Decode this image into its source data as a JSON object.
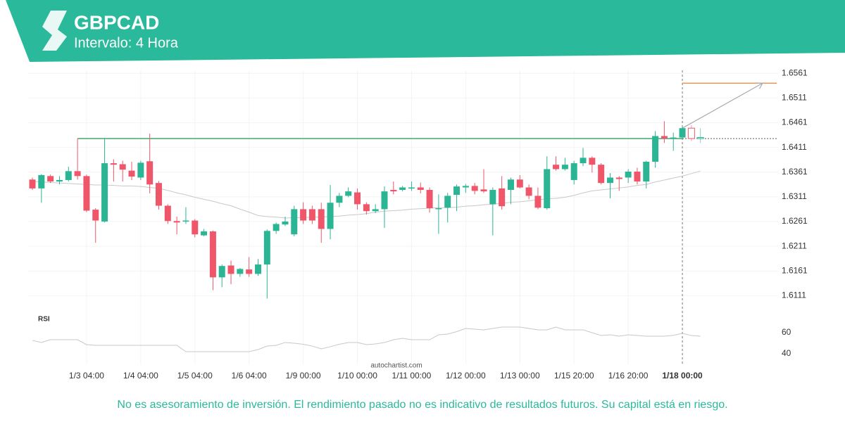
{
  "chart_data": {
    "type": "candlestick",
    "title": "GBPCAD",
    "subtitle": "Intervalo: 4 Hora",
    "watermark": "autochartist.com",
    "rsi_label": "RSI",
    "disclaimer": "No es asesoramiento de inversión. El rendimiento pasado no es indicativo de resultados futuros. Su capital está en riesgo.",
    "categories": [
      null,
      null,
      null,
      null,
      null,
      null,
      "1/3 04:00",
      null,
      null,
      null,
      null,
      null,
      "1/4 04:00",
      null,
      null,
      null,
      null,
      null,
      "1/5 04:00",
      null,
      null,
      null,
      null,
      null,
      "1/6 04:00",
      null,
      null,
      null,
      null,
      null,
      "1/9 00:00",
      null,
      null,
      null,
      null,
      null,
      "1/10 00:00",
      null,
      null,
      null,
      null,
      null,
      "1/11 00:00",
      null,
      null,
      null,
      null,
      null,
      "1/12 00:00",
      null,
      null,
      null,
      null,
      null,
      "1/13 00:00",
      null,
      null,
      null,
      null,
      null,
      "1/15 20:00",
      null,
      null,
      null,
      null,
      null,
      "1/16 20:00",
      null,
      null,
      null,
      null,
      null,
      "1/18 00:00",
      null,
      null
    ],
    "open": [
      1.6346,
      1.6328,
      1.6353,
      1.6342,
      1.6345,
      1.6363,
      1.6353,
      1.6285,
      1.6261,
      1.6379,
      1.6377,
      1.6364,
      1.635,
      1.6383,
      1.6339,
      1.6293,
      1.6262,
      1.6261,
      1.6263,
      1.6233,
      1.6241,
      1.6148,
      1.6172,
      1.6155,
      1.6164,
      1.6155,
      1.6174,
      1.6242,
      1.6255,
      1.6235,
      1.6286,
      1.6286,
      1.6286,
      1.6246,
      1.6299,
      1.6313,
      1.632,
      1.6296,
      1.6282,
      1.6286,
      1.6325,
      1.6325,
      1.6329,
      1.633,
      1.6325,
      1.6286,
      1.6289,
      1.6315,
      1.633,
      1.6333,
      1.6326,
      1.6296,
      1.6328,
      1.6325,
      1.6346,
      1.633,
      1.6313,
      1.6288,
      1.6376,
      1.6367,
      1.6345,
      1.6379,
      1.639,
      1.6376,
      1.6339,
      1.635,
      1.635,
      1.6362,
      1.6342,
      1.6382,
      1.6434,
      1.6429,
      1.6431,
      1.645,
      1.6429
    ],
    "high": [
      1.635,
      1.6357,
      1.6356,
      1.6353,
      1.6372,
      1.6429,
      1.6356,
      1.6288,
      1.6429,
      1.6387,
      1.6384,
      1.6382,
      1.6384,
      1.6439,
      1.6343,
      1.6296,
      1.6271,
      1.629,
      1.6266,
      1.6246,
      1.6243,
      1.6174,
      1.6182,
      1.6167,
      1.6189,
      1.6185,
      1.6245,
      1.6259,
      1.6271,
      1.6293,
      1.63,
      1.6293,
      1.6299,
      1.6335,
      1.6319,
      1.633,
      1.6328,
      1.63,
      1.6296,
      1.6332,
      1.6342,
      1.6333,
      1.6342,
      1.634,
      1.633,
      1.6316,
      1.6319,
      1.6336,
      1.6337,
      1.6339,
      1.6367,
      1.633,
      1.6353,
      1.635,
      1.6355,
      1.6336,
      1.633,
      1.6393,
      1.6393,
      1.639,
      1.6384,
      1.641,
      1.6393,
      1.6379,
      1.6359,
      1.6353,
      1.6367,
      1.637,
      1.6384,
      1.6444,
      1.6464,
      1.6441,
      1.6453,
      1.6456,
      1.645
    ],
    "low": [
      1.6325,
      1.6299,
      1.6339,
      1.6336,
      1.6342,
      1.6346,
      1.628,
      1.6218,
      1.6259,
      1.6342,
      1.6342,
      1.6345,
      1.6345,
      1.6318,
      1.6285,
      1.6256,
      1.6235,
      1.6256,
      1.6229,
      1.6231,
      1.6122,
      1.6128,
      1.6134,
      1.6149,
      1.6149,
      1.6151,
      1.6105,
      1.6236,
      1.6252,
      1.6231,
      1.6256,
      1.6256,
      1.6218,
      1.6225,
      1.629,
      1.631,
      1.6285,
      1.6275,
      1.6278,
      1.6248,
      1.6316,
      1.6322,
      1.6323,
      1.6318,
      1.6279,
      1.6236,
      1.6259,
      1.6282,
      1.6319,
      1.6316,
      1.6319,
      1.6233,
      1.6285,
      1.6296,
      1.6328,
      1.6306,
      1.6286,
      1.6285,
      1.6364,
      1.6364,
      1.6336,
      1.6373,
      1.636,
      1.6336,
      1.6308,
      1.6323,
      1.6339,
      1.6336,
      1.6328,
      1.637,
      1.642,
      1.6404,
      1.6429,
      1.6424,
      1.642
    ],
    "close": [
      1.6328,
      1.6355,
      1.6342,
      1.6345,
      1.6363,
      1.6353,
      1.6283,
      1.6263,
      1.6379,
      1.6376,
      1.6366,
      1.6352,
      1.638,
      1.6336,
      1.6293,
      1.6262,
      1.6259,
      1.6263,
      1.6235,
      1.6241,
      1.6148,
      1.6171,
      1.6155,
      1.6165,
      1.6155,
      1.6174,
      1.6242,
      1.6256,
      1.6261,
      1.6286,
      1.6263,
      1.6263,
      1.6246,
      1.6299,
      1.6313,
      1.6322,
      1.6296,
      1.6282,
      1.6286,
      1.6322,
      1.6322,
      1.633,
      1.633,
      1.6325,
      1.6288,
      1.6288,
      1.6313,
      1.6332,
      1.6333,
      1.6323,
      1.6322,
      1.6325,
      1.6292,
      1.6346,
      1.633,
      1.6313,
      1.6289,
      1.6367,
      1.6367,
      1.6376,
      1.6379,
      1.639,
      1.6376,
      1.6339,
      1.635,
      1.6347,
      1.6362,
      1.6342,
      1.6382,
      1.6434,
      1.6429,
      1.6431,
      1.645,
      1.6429,
      1.6431
    ],
    "sma": [
      1.6342,
      1.6341,
      1.634,
      1.6339,
      1.6338,
      1.6337,
      1.6336,
      1.6335,
      1.6335,
      1.6334,
      1.6333,
      1.6333,
      1.6332,
      1.633,
      1.6328,
      1.6324,
      1.6319,
      1.6315,
      1.631,
      1.6306,
      1.6302,
      1.6297,
      1.6293,
      1.6286,
      1.628,
      1.6273,
      1.6271,
      1.627,
      1.6268,
      1.6269,
      1.6269,
      1.627,
      1.627,
      1.6271,
      1.6272,
      1.6274,
      1.6275,
      1.6277,
      1.628,
      1.6282,
      1.6283,
      1.6284,
      1.6286,
      1.6287,
      1.6288,
      1.6289,
      1.6289,
      1.629,
      1.6292,
      1.6293,
      1.6295,
      1.6296,
      1.6298,
      1.63,
      1.6301,
      1.6303,
      1.6305,
      1.6307,
      1.6308,
      1.631,
      1.6314,
      1.6319,
      1.6323,
      1.6325,
      1.6327,
      1.6329,
      1.6331,
      1.6334,
      1.6336,
      1.6341,
      1.6345,
      1.6349,
      1.6353,
      1.6358,
      1.6363
    ],
    "rsi": [
      52.7,
      50.7,
      53.3,
      53.3,
      53.3,
      53.3,
      48.7,
      48,
      48,
      48,
      48,
      48,
      48,
      48,
      48,
      48,
      48,
      42,
      42,
      42,
      42,
      42,
      42,
      42,
      42,
      44,
      47.3,
      48,
      50.7,
      50,
      49,
      47.3,
      44.7,
      46.7,
      49,
      50.7,
      50.7,
      48.7,
      49.3,
      50.7,
      53.3,
      54.7,
      53.3,
      53.3,
      53.3,
      58,
      58.7,
      61,
      64,
      63.3,
      62.7,
      64,
      65.3,
      65.3,
      65.3,
      64,
      62.7,
      62.7,
      65.3,
      62.7,
      62.7,
      62.7,
      60,
      57.3,
      58,
      56.7,
      58,
      57.3,
      56.7,
      56.7,
      56.7,
      57.5,
      59.3,
      57.3,
      56.7
    ],
    "resistance_level": 1.6429,
    "target_level": 1.6541,
    "projection_start": 1.645,
    "up_color": "#2bb594",
    "down_color": "#f0566a",
    "sma_color": "#c8c8c8",
    "rsi_color": "#c8c8c8",
    "resistance_color": "#6fbf90",
    "target_color": "#e8833a",
    "ylim": [
      1.6083,
      1.6567
    ],
    "yticks": [
      1.6561,
      1.6511,
      1.6461,
      1.6411,
      1.6361,
      1.6311,
      1.6261,
      1.6211,
      1.6161,
      1.6111
    ],
    "rsi_ylim": [
      30,
      70
    ],
    "rsi_ticks": [
      40,
      60
    ],
    "grid": true
  }
}
